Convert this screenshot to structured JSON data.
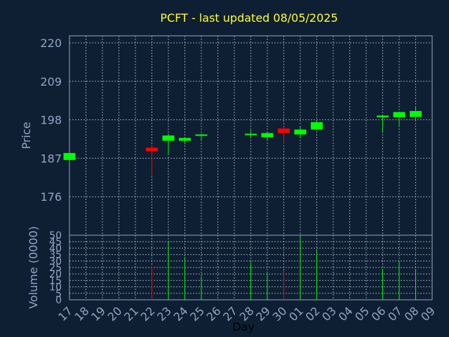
{
  "title": "PCFT - last updated 08/05/2025",
  "colors": {
    "background": "#0f1f33",
    "title": "#ffff33",
    "axis": "#8fa6c2",
    "up": "#00ff00",
    "down": "#ff0000",
    "grid": "#b8c4d3"
  },
  "chart_data": {
    "type": "candlestick",
    "title": "PCFT - last updated 08/05/2025",
    "xlabel": "Day",
    "price_ylabel": "Price",
    "volume_ylabel": "Volume (0000)",
    "price_ylim": [
      165,
      222
    ],
    "price_ticks": [
      176,
      187,
      198,
      209,
      220
    ],
    "volume_ylim": [
      0,
      50
    ],
    "volume_ticks": [
      0,
      5,
      10,
      15,
      20,
      25,
      30,
      35,
      40,
      45,
      50
    ],
    "x_tick_labels": [
      "17",
      "18",
      "19",
      "20",
      "21",
      "22",
      "23",
      "24",
      "25",
      "26",
      "27",
      "28",
      "29",
      "30",
      "01",
      "02",
      "03",
      "04",
      "05",
      "06",
      "07",
      "08",
      "09"
    ],
    "grid": true,
    "candles": [
      {
        "day": "17",
        "open": 186.5,
        "high": 189.0,
        "low": 186.0,
        "close": 188.5
      },
      {
        "day": "22",
        "open": 190.0,
        "high": 190.5,
        "low": 182.0,
        "close": 189.0
      },
      {
        "day": "23",
        "open": 192.0,
        "high": 194.0,
        "low": 188.0,
        "close": 193.5
      },
      {
        "day": "24",
        "open": 192.0,
        "high": 193.0,
        "low": 191.0,
        "close": 192.8
      },
      {
        "day": "25",
        "open": 193.5,
        "high": 194.0,
        "low": 192.0,
        "close": 193.8
      },
      {
        "day": "28",
        "open": 193.6,
        "high": 195.0,
        "low": 193.0,
        "close": 194.0
      },
      {
        "day": "29",
        "open": 193.0,
        "high": 194.5,
        "low": 192.0,
        "close": 194.2
      },
      {
        "day": "30",
        "open": 195.5,
        "high": 196.0,
        "low": 191.0,
        "close": 194.2
      },
      {
        "day": "01",
        "open": 193.8,
        "high": 196.0,
        "low": 193.0,
        "close": 195.2
      },
      {
        "day": "02",
        "open": 195.2,
        "high": 197.5,
        "low": 195.0,
        "close": 197.3
      },
      {
        "day": "06",
        "open": 198.7,
        "high": 199.3,
        "low": 194.5,
        "close": 199.2
      },
      {
        "day": "07",
        "open": 198.7,
        "high": 200.3,
        "low": 196.0,
        "close": 200.2
      },
      {
        "day": "08",
        "open": 198.8,
        "high": 201.8,
        "low": 198.0,
        "close": 200.5
      }
    ],
    "volume": [
      {
        "day": "22",
        "value": 26,
        "direction": "down"
      },
      {
        "day": "23",
        "value": 45,
        "direction": "up"
      },
      {
        "day": "24",
        "value": 33,
        "direction": "up"
      },
      {
        "day": "25",
        "value": 18,
        "direction": "up"
      },
      {
        "day": "28",
        "value": 29,
        "direction": "up"
      },
      {
        "day": "29",
        "value": 20,
        "direction": "up"
      },
      {
        "day": "30",
        "value": 23,
        "direction": "down"
      },
      {
        "day": "01",
        "value": 49,
        "direction": "up"
      },
      {
        "day": "02",
        "value": 38,
        "direction": "up"
      },
      {
        "day": "06",
        "value": 24,
        "direction": "up"
      },
      {
        "day": "07",
        "value": 30,
        "direction": "up"
      },
      {
        "day": "08",
        "value": 23,
        "direction": "up"
      }
    ]
  }
}
